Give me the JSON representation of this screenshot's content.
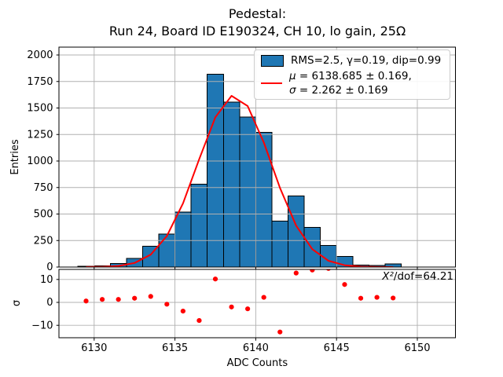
{
  "title": {
    "line1": "Pedestal:",
    "line2": "Run 24, Board ID E190324, CH 10, lo gain, 25Ω"
  },
  "legend": {
    "hist_label": "RMS=2.5, γ=0.19, dip=0.99",
    "mu_symbol": "μ",
    "mu_rest": " = 6138.685 ± 0.169,",
    "sigma_symbol": "σ",
    "sigma_rest": " = 2.262 ± 0.169"
  },
  "annotations": {
    "chi2_prefix": "X²",
    "chi2_rest": "/dof=64.21"
  },
  "colors": {
    "hist_fill": "#1f77b4",
    "hist_edge": "#000000",
    "fit_line": "#ff0000",
    "residual_points": "#ff0000",
    "grid": "#b0b0b0",
    "axis": "#000000"
  },
  "chart_data": [
    {
      "type": "bar",
      "subplot": "main",
      "title": "Pedestal: Run 24, Board ID E190324, CH 10, lo gain, 25Ω",
      "xlabel": "",
      "ylabel": "Entries",
      "bin_edges": [
        6129,
        6130,
        6131,
        6132,
        6133,
        6134,
        6135,
        6136,
        6137,
        6138,
        6139,
        6140,
        6141,
        6142,
        6143,
        6144,
        6145,
        6146,
        6147,
        6148,
        6149
      ],
      "counts": [
        8,
        12,
        35,
        80,
        195,
        310,
        520,
        780,
        1820,
        1555,
        1415,
        1270,
        435,
        670,
        375,
        205,
        100,
        18,
        14,
        28
      ],
      "xticks": [
        6130,
        6135,
        6140,
        6145,
        6150
      ],
      "yticks": [
        0,
        250,
        500,
        750,
        1000,
        1250,
        1500,
        1750,
        2000
      ],
      "xlim": [
        6127.8,
        6152.4
      ],
      "ylim": [
        0,
        2074
      ],
      "grid": true,
      "legend_position": "upper right",
      "fit": {
        "shape": "gaussian",
        "amplitude": 1620,
        "mu": 6138.685,
        "sigma": 2.262,
        "evaluated_at": "bin_centers"
      }
    },
    {
      "type": "scatter",
      "subplot": "residuals",
      "xlabel": "ADC Counts",
      "ylabel": "σ",
      "x": [
        6129.5,
        6130.5,
        6131.5,
        6132.5,
        6133.5,
        6134.5,
        6135.5,
        6136.5,
        6137.5,
        6138.5,
        6139.5,
        6140.5,
        6141.5,
        6142.5,
        6143.5,
        6144.5,
        6145.5,
        6146.5,
        6147.5,
        6148.5
      ],
      "y": [
        0.6,
        1.3,
        1.3,
        1.8,
        2.6,
        -0.8,
        -3.8,
        -7.9,
        10.2,
        -2.0,
        -2.8,
        2.2,
        -12.9,
        12.8,
        14.1,
        14.8,
        7.8,
        1.8,
        2.2,
        1.9
      ],
      "xticks": [
        6130,
        6135,
        6140,
        6145,
        6150
      ],
      "yticks": [
        -10,
        0,
        10
      ],
      "xlim": [
        6127.8,
        6152.4
      ],
      "ylim": [
        -15.4,
        14.6
      ],
      "grid": true
    }
  ]
}
